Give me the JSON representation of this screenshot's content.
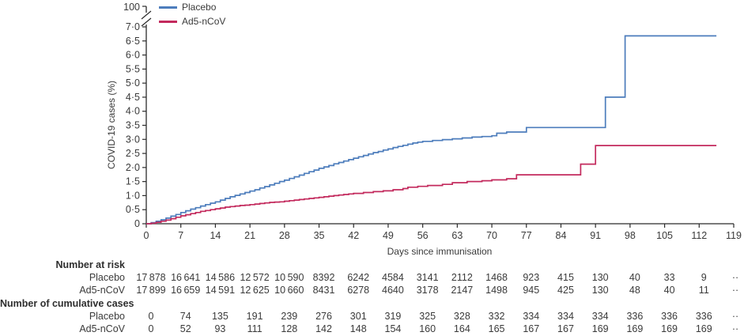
{
  "colors": {
    "placebo": "#4d7dbc",
    "ad5": "#c32a5d",
    "axis": "#2b2b2b",
    "text": "#3a3a3a"
  },
  "chart_data": {
    "type": "line",
    "subtype": "step-cumulative-incidence",
    "title": "",
    "xlabel": "Days since immunisation",
    "ylabel": "COVID-19 cases (%)",
    "ylim": [
      0,
      7
    ],
    "y_axis_break": true,
    "y_break_label": "100",
    "grid": false,
    "legend_position": "top-left",
    "x_ticks": [
      0,
      7,
      14,
      21,
      28,
      35,
      42,
      49,
      56,
      63,
      70,
      77,
      84,
      91,
      98,
      105,
      112,
      119
    ],
    "y_tick_labels": [
      "0",
      "0·5",
      "1·0",
      "1·5",
      "2·0",
      "2·5",
      "3·0",
      "3·5",
      "4·0",
      "4·5",
      "5·0",
      "5·5",
      "6·0",
      "6·5",
      "7·0"
    ],
    "y_tick_values": [
      0,
      0.5,
      1.0,
      1.5,
      2.0,
      2.5,
      3.0,
      3.5,
      4.0,
      4.5,
      5.0,
      5.5,
      6.0,
      6.5,
      7.0
    ],
    "series": [
      {
        "name": "Placebo",
        "color": "#4d7dbc",
        "points": [
          [
            0,
            0
          ],
          [
            1,
            0.04
          ],
          [
            2,
            0.09
          ],
          [
            3,
            0.14
          ],
          [
            4,
            0.2
          ],
          [
            5,
            0.27
          ],
          [
            6,
            0.33
          ],
          [
            7,
            0.4
          ],
          [
            8,
            0.46
          ],
          [
            9,
            0.52
          ],
          [
            10,
            0.57
          ],
          [
            11,
            0.63
          ],
          [
            12,
            0.68
          ],
          [
            13,
            0.73
          ],
          [
            14,
            0.78
          ],
          [
            15,
            0.84
          ],
          [
            16,
            0.9
          ],
          [
            17,
            0.96
          ],
          [
            18,
            1.01
          ],
          [
            19,
            1.06
          ],
          [
            20,
            1.11
          ],
          [
            21,
            1.16
          ],
          [
            22,
            1.21
          ],
          [
            23,
            1.27
          ],
          [
            24,
            1.32
          ],
          [
            25,
            1.38
          ],
          [
            26,
            1.44
          ],
          [
            27,
            1.5
          ],
          [
            28,
            1.55
          ],
          [
            29,
            1.61
          ],
          [
            30,
            1.67
          ],
          [
            31,
            1.73
          ],
          [
            32,
            1.79
          ],
          [
            33,
            1.85
          ],
          [
            34,
            1.91
          ],
          [
            35,
            1.97
          ],
          [
            36,
            2.02
          ],
          [
            37,
            2.07
          ],
          [
            38,
            2.13
          ],
          [
            39,
            2.18
          ],
          [
            40,
            2.23
          ],
          [
            41,
            2.28
          ],
          [
            42,
            2.33
          ],
          [
            43,
            2.38
          ],
          [
            44,
            2.43
          ],
          [
            45,
            2.48
          ],
          [
            46,
            2.53
          ],
          [
            47,
            2.57
          ],
          [
            48,
            2.62
          ],
          [
            49,
            2.66
          ],
          [
            50,
            2.71
          ],
          [
            51,
            2.75
          ],
          [
            52,
            2.79
          ],
          [
            53,
            2.83
          ],
          [
            54,
            2.87
          ],
          [
            55,
            2.9
          ],
          [
            56,
            2.93
          ],
          [
            58,
            2.96
          ],
          [
            60,
            2.99
          ],
          [
            62,
            3.02
          ],
          [
            64,
            3.05
          ],
          [
            66,
            3.08
          ],
          [
            68,
            3.1
          ],
          [
            70,
            3.13
          ],
          [
            71,
            3.22
          ],
          [
            73,
            3.26
          ],
          [
            77,
            3.42
          ],
          [
            93,
            4.5
          ],
          [
            97,
            6.68
          ],
          [
            115.5,
            6.68
          ]
        ]
      },
      {
        "name": "Ad5-nCoV",
        "color": "#c32a5d",
        "points": [
          [
            0,
            0
          ],
          [
            1,
            0.02
          ],
          [
            2,
            0.05
          ],
          [
            3,
            0.09
          ],
          [
            4,
            0.13
          ],
          [
            5,
            0.18
          ],
          [
            6,
            0.23
          ],
          [
            7,
            0.28
          ],
          [
            8,
            0.32
          ],
          [
            9,
            0.36
          ],
          [
            10,
            0.4
          ],
          [
            11,
            0.44
          ],
          [
            12,
            0.47
          ],
          [
            13,
            0.5
          ],
          [
            14,
            0.53
          ],
          [
            15,
            0.56
          ],
          [
            16,
            0.59
          ],
          [
            17,
            0.61
          ],
          [
            18,
            0.63
          ],
          [
            19,
            0.65
          ],
          [
            20,
            0.66
          ],
          [
            21,
            0.68
          ],
          [
            22,
            0.7
          ],
          [
            23,
            0.72
          ],
          [
            24,
            0.74
          ],
          [
            25,
            0.76
          ],
          [
            26,
            0.77
          ],
          [
            27,
            0.78
          ],
          [
            28,
            0.8
          ],
          [
            29,
            0.82
          ],
          [
            30,
            0.84
          ],
          [
            31,
            0.86
          ],
          [
            32,
            0.88
          ],
          [
            33,
            0.9
          ],
          [
            34,
            0.92
          ],
          [
            35,
            0.94
          ],
          [
            36,
            0.96
          ],
          [
            37,
            0.98
          ],
          [
            38,
            1.0
          ],
          [
            39,
            1.02
          ],
          [
            40,
            1.04
          ],
          [
            41,
            1.06
          ],
          [
            42,
            1.08
          ],
          [
            44,
            1.11
          ],
          [
            46,
            1.14
          ],
          [
            48,
            1.17
          ],
          [
            50,
            1.21
          ],
          [
            52,
            1.25
          ],
          [
            53,
            1.3
          ],
          [
            55,
            1.33
          ],
          [
            57,
            1.36
          ],
          [
            60,
            1.4
          ],
          [
            62,
            1.46
          ],
          [
            65,
            1.5
          ],
          [
            68,
            1.53
          ],
          [
            70,
            1.56
          ],
          [
            73,
            1.6
          ],
          [
            75,
            1.74
          ],
          [
            88,
            2.12
          ],
          [
            91,
            2.78
          ],
          [
            115.5,
            2.78
          ]
        ]
      }
    ]
  },
  "risk_table": {
    "columns_days": [
      0,
      7,
      14,
      21,
      28,
      35,
      42,
      49,
      56,
      63,
      70,
      77,
      84,
      91,
      98,
      105,
      112
    ],
    "overflow_column": "··",
    "sections": [
      {
        "header": "Number at risk",
        "rows": [
          {
            "label": "Placebo",
            "values": [
              "17 878",
              "16 641",
              "14 586",
              "12 572",
              "10 590",
              "8392",
              "6242",
              "4584",
              "3141",
              "2112",
              "1468",
              "923",
              "415",
              "130",
              "40",
              "33",
              "9",
              "··"
            ]
          },
          {
            "label": "Ad5-nCoV",
            "values": [
              "17 899",
              "16 659",
              "14 591",
              "12 625",
              "10 660",
              "8431",
              "6278",
              "4640",
              "3178",
              "2147",
              "1498",
              "945",
              "425",
              "130",
              "48",
              "40",
              "11",
              "··"
            ]
          }
        ]
      },
      {
        "header": "Number of cumulative cases",
        "rows": [
          {
            "label": "Placebo",
            "values": [
              "0",
              "74",
              "135",
              "191",
              "239",
              "276",
              "301",
              "319",
              "325",
              "328",
              "332",
              "334",
              "334",
              "334",
              "336",
              "336",
              "336",
              "··"
            ]
          },
          {
            "label": "Ad5-nCoV",
            "values": [
              "0",
              "52",
              "93",
              "111",
              "128",
              "142",
              "148",
              "154",
              "160",
              "164",
              "165",
              "167",
              "167",
              "169",
              "169",
              "169",
              "169",
              "··"
            ]
          }
        ]
      }
    ]
  }
}
